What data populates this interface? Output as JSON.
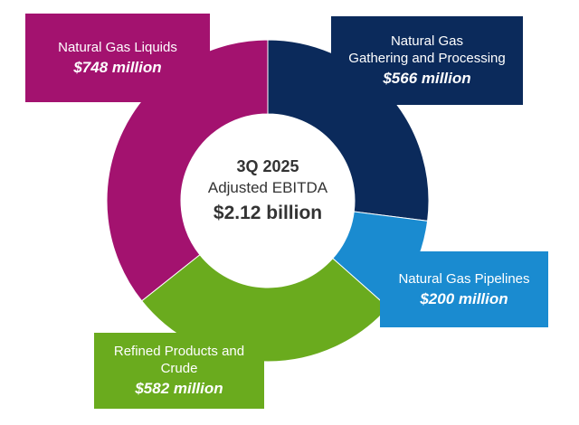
{
  "chart_data": {
    "type": "pie",
    "donut": true,
    "title": "3Q 2025",
    "subtitle": "Adjusted EBITDA",
    "total_label": "$2.12 billion",
    "categories": [
      "Natural Gas\nGathering and Processing",
      "Natural Gas Pipelines",
      "Refined Products and\nCrude",
      "Natural Gas Liquids"
    ],
    "values": [
      566,
      200,
      582,
      748
    ],
    "value_labels": [
      "$566 million",
      "$200 million",
      "$582 million",
      "$748 million"
    ],
    "colors": [
      "#0b2a5b",
      "#1a8bd0",
      "#6aab1e",
      "#a3126f"
    ]
  }
}
